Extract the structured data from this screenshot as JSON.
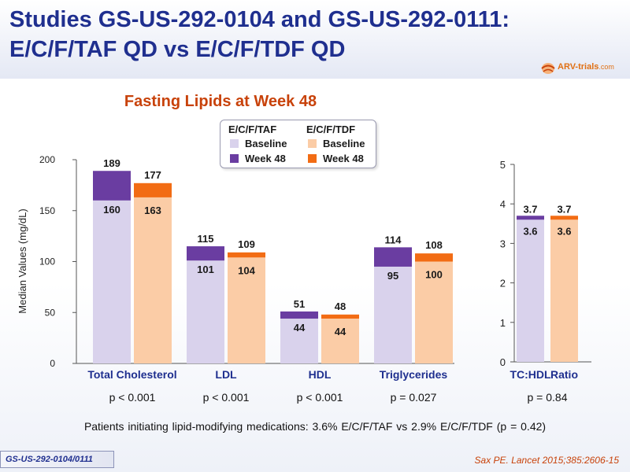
{
  "slide": {
    "title_line1": "Studies GS-US-292-0104 and GS-US-292-0111:",
    "title_line2": "E/C/F/TAF QD vs E/C/F/TDF QD",
    "logo_text": "ARV-trials",
    "logo_suffix": ".com",
    "subtitle": "Fasting Lipids at Week 48",
    "note": "Patients initiating lipid-modifying medications: 3.6% E/C/F/TAF vs 2.9% E/C/F/TDF (p = 0.42)",
    "footer_badge": "GS-US-292-0104/0111",
    "citation": "Sax PE. Lancet 2015;385:2606-15"
  },
  "legend": {
    "groups": [
      {
        "name": "E/C/F/TAF",
        "items": [
          {
            "label": "Baseline",
            "color": "#d9d2ec"
          },
          {
            "label": "Week 48",
            "color": "#6a3da1"
          }
        ]
      },
      {
        "name": "E/C/F/TDF",
        "items": [
          {
            "label": "Baseline",
            "color": "#fbcca6"
          },
          {
            "label": "Week 48",
            "color": "#f26c14"
          }
        ]
      }
    ]
  },
  "colors": {
    "taf_baseline": "#d9d2ec",
    "taf_week48": "#6a3da1",
    "tdf_baseline": "#fbcca6",
    "tdf_week48": "#f26c14",
    "title": "#1f2f8f",
    "accent": "#c8420a"
  },
  "chart_data": [
    {
      "type": "bar",
      "ylabel": "Median Values (mg/dL)",
      "ylim": [
        0,
        200
      ],
      "yticks": [
        0,
        50,
        100,
        150,
        200
      ],
      "categories": [
        "Total Cholesterol",
        "LDL",
        "HDL",
        "Triglycerides"
      ],
      "series": [
        {
          "name": "E/C/F/TAF Baseline",
          "values": [
            160,
            101,
            44,
            95
          ]
        },
        {
          "name": "E/C/F/TAF Week 48",
          "values": [
            189,
            115,
            51,
            114
          ]
        },
        {
          "name": "E/C/F/TDF Baseline",
          "values": [
            163,
            104,
            44,
            100
          ]
        },
        {
          "name": "E/C/F/TDF Week 48",
          "values": [
            177,
            109,
            48,
            108
          ]
        }
      ],
      "pvalues": [
        "p < 0.001",
        "p < 0.001",
        "p < 0.001",
        "p = 0.027"
      ],
      "grid": false
    },
    {
      "type": "bar",
      "ylim": [
        0,
        5
      ],
      "yticks": [
        0,
        1,
        2,
        3,
        4,
        5
      ],
      "categories": [
        "TC:HDL Ratio"
      ],
      "category_words": [
        "TC:HDL",
        "Ratio"
      ],
      "series": [
        {
          "name": "E/C/F/TAF Baseline",
          "values": [
            3.6
          ]
        },
        {
          "name": "E/C/F/TAF Week 48",
          "values": [
            3.7
          ]
        },
        {
          "name": "E/C/F/TDF Baseline",
          "values": [
            3.6
          ]
        },
        {
          "name": "E/C/F/TDF Week 48",
          "values": [
            3.7
          ]
        }
      ],
      "pvalues": [
        "p = 0.84"
      ],
      "grid": false
    }
  ]
}
